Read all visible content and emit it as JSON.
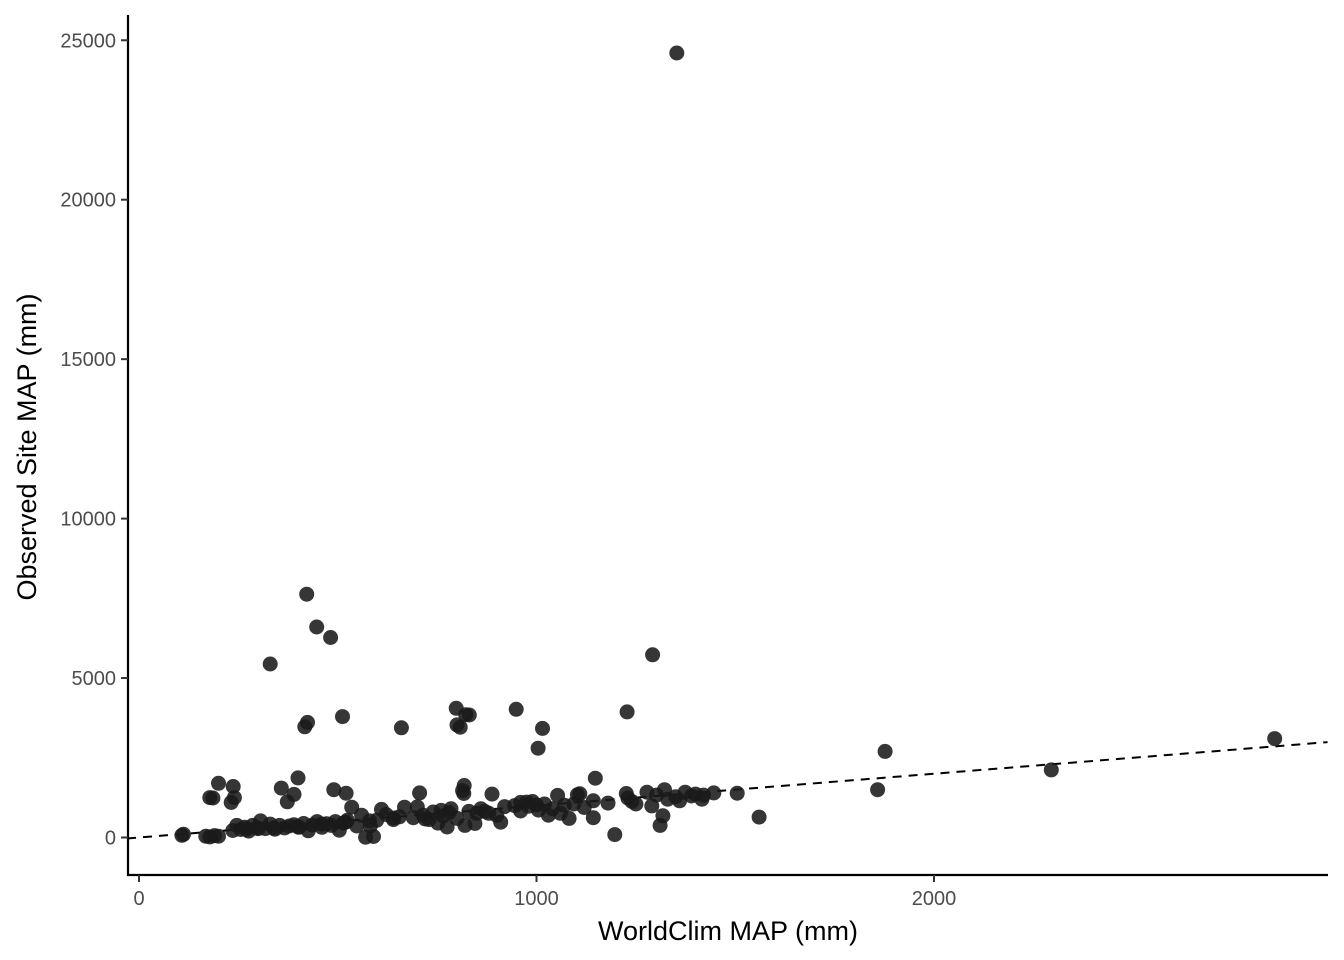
{
  "chart_data": {
    "type": "scatter",
    "title": "",
    "xlabel": "WorldClim MAP (mm)",
    "ylabel": "Observed Site MAP (mm)",
    "xlim": [
      -30,
      2990
    ],
    "ylim": [
      -1100,
      25700
    ],
    "x_ticks": [
      0,
      1000,
      2000
    ],
    "y_ticks": [
      0,
      5000,
      10000,
      15000,
      20000,
      25000
    ],
    "grid": false,
    "legend": "none",
    "reference_line": {
      "style": "dashed",
      "slope": 1,
      "intercept": 0,
      "color": "#000000"
    },
    "point_color": "#1a1a1a",
    "series": [
      {
        "points": [
          [
            1353,
            24600
          ],
          [
            422,
            7630
          ],
          [
            447,
            6600
          ],
          [
            482,
            6270
          ],
          [
            1292,
            5730
          ],
          [
            330,
            5440
          ],
          [
            798,
            4050
          ],
          [
            949,
            4020
          ],
          [
            1228,
            3940
          ],
          [
            512,
            3790
          ],
          [
            822,
            3850
          ],
          [
            831,
            3840
          ],
          [
            424,
            3610
          ],
          [
            417,
            3470
          ],
          [
            800,
            3530
          ],
          [
            808,
            3460
          ],
          [
            660,
            3440
          ],
          [
            1015,
            3420
          ],
          [
            1004,
            2800
          ],
          [
            1877,
            2700
          ],
          [
            2857,
            3100
          ],
          [
            2295,
            2120
          ],
          [
            1858,
            1500
          ],
          [
            200,
            1700
          ],
          [
            237,
            1600
          ],
          [
            400,
            1870
          ],
          [
            1148,
            1860
          ],
          [
            178,
            1250
          ],
          [
            186,
            1240
          ],
          [
            232,
            1100
          ],
          [
            240,
            1250
          ],
          [
            373,
            1120
          ],
          [
            390,
            1350
          ],
          [
            358,
            1550
          ],
          [
            490,
            1500
          ],
          [
            521,
            1390
          ],
          [
            706,
            1400
          ],
          [
            818,
            1630
          ],
          [
            814,
            1470
          ],
          [
            817,
            1380
          ],
          [
            888,
            1360
          ],
          [
            1053,
            1320
          ],
          [
            1103,
            1340
          ],
          [
            1109,
            1370
          ],
          [
            1226,
            1380
          ],
          [
            1230,
            1240
          ],
          [
            1278,
            1420
          ],
          [
            1302,
            1330
          ],
          [
            1322,
            1500
          ],
          [
            1350,
            1280
          ],
          [
            1374,
            1420
          ],
          [
            1400,
            1360
          ],
          [
            1416,
            1200
          ],
          [
            1446,
            1400
          ],
          [
            1505,
            1390
          ],
          [
            1560,
            640
          ],
          [
            1197,
            90
          ],
          [
            1311,
            380
          ],
          [
            1318,
            680
          ],
          [
            1143,
            620
          ],
          [
            1143,
            1150
          ],
          [
            1094,
            1050
          ],
          [
            1082,
            600
          ],
          [
            1040,
            900
          ],
          [
            1020,
            1050
          ],
          [
            1000,
            1020
          ],
          [
            990,
            1130
          ],
          [
            975,
            1110
          ],
          [
            960,
            830
          ],
          [
            945,
            1000
          ],
          [
            900,
            690
          ],
          [
            910,
            480
          ],
          [
            880,
            760
          ],
          [
            860,
            900
          ],
          [
            845,
            440
          ],
          [
            830,
            820
          ],
          [
            820,
            380
          ],
          [
            800,
            600
          ],
          [
            785,
            900
          ],
          [
            775,
            330
          ],
          [
            765,
            680
          ],
          [
            752,
            450
          ],
          [
            740,
            800
          ],
          [
            730,
            560
          ],
          [
            715,
            700
          ],
          [
            700,
            960
          ],
          [
            690,
            620
          ],
          [
            668,
            950
          ],
          [
            655,
            650
          ],
          [
            640,
            610
          ],
          [
            622,
            720
          ],
          [
            610,
            880
          ],
          [
            598,
            540
          ],
          [
            590,
            30
          ],
          [
            582,
            360
          ],
          [
            570,
            10
          ],
          [
            560,
            700
          ],
          [
            548,
            360
          ],
          [
            535,
            950
          ],
          [
            524,
            540
          ],
          [
            514,
            450
          ],
          [
            504,
            230
          ],
          [
            494,
            500
          ],
          [
            484,
            380
          ],
          [
            472,
            430
          ],
          [
            460,
            320
          ],
          [
            448,
            500
          ],
          [
            436,
            390
          ],
          [
            426,
            210
          ],
          [
            414,
            440
          ],
          [
            402,
            320
          ],
          [
            390,
            400
          ],
          [
            378,
            360
          ],
          [
            366,
            300
          ],
          [
            354,
            380
          ],
          [
            342,
            260
          ],
          [
            330,
            420
          ],
          [
            318,
            280
          ],
          [
            306,
            520
          ],
          [
            296,
            300
          ],
          [
            286,
            380
          ],
          [
            276,
            200
          ],
          [
            266,
            320
          ],
          [
            256,
            250
          ],
          [
            246,
            380
          ],
          [
            236,
            220
          ],
          [
            112,
            100
          ],
          [
            108,
            70
          ],
          [
            168,
            40
          ],
          [
            178,
            20
          ],
          [
            190,
            60
          ],
          [
            200,
            40
          ],
          [
            980,
            980
          ],
          [
            1060,
            760
          ],
          [
            1120,
            940
          ],
          [
            1250,
            1050
          ],
          [
            1290,
            990
          ],
          [
            1330,
            1200
          ],
          [
            1360,
            1150
          ],
          [
            1390,
            1300
          ],
          [
            1420,
            1330
          ],
          [
            960,
            1100
          ],
          [
            1030,
            700
          ],
          [
            870,
            820
          ],
          [
            720,
            580
          ],
          [
            640,
            560
          ],
          [
            580,
            520
          ],
          [
            520,
            480
          ],
          [
            460,
            420
          ],
          [
            400,
            340
          ],
          [
            340,
            300
          ],
          [
            300,
            280
          ],
          [
            270,
            260
          ],
          [
            760,
            850
          ],
          [
            780,
            780
          ],
          [
            850,
            760
          ],
          [
            920,
            970
          ],
          [
            1005,
            860
          ],
          [
            1070,
            1010
          ],
          [
            1180,
            1080
          ],
          [
            1240,
            1130
          ]
        ]
      }
    ]
  }
}
